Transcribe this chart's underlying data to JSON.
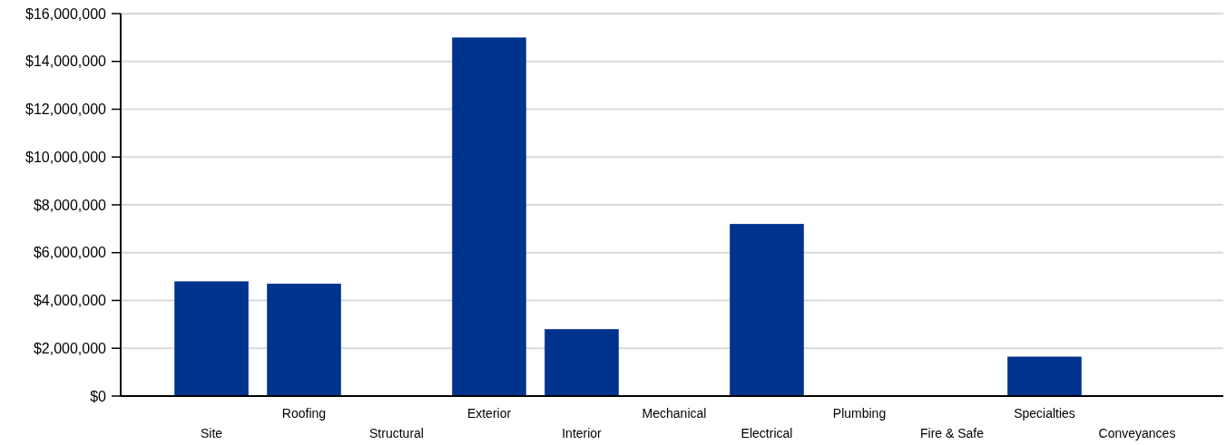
{
  "chart_data": {
    "type": "bar",
    "categories": [
      "Site",
      "Roofing",
      "Structural",
      "Exterior",
      "Interior",
      "Mechanical",
      "Electrical",
      "Plumbing",
      "Fire & Safe",
      "Specialties",
      "Conveyances"
    ],
    "values": [
      4800000,
      4700000,
      0,
      15000000,
      2800000,
      0,
      7200000,
      0,
      0,
      1650000,
      0
    ],
    "color": "#00338d",
    "ylim": [
      0,
      16000000
    ],
    "yticks": [
      {
        "value": 0,
        "label": "$0"
      },
      {
        "value": 2000000,
        "label": "$2,000,000"
      },
      {
        "value": 4000000,
        "label": "$4,000,000"
      },
      {
        "value": 6000000,
        "label": "$6,000,000"
      },
      {
        "value": 8000000,
        "label": "$8,000,000"
      },
      {
        "value": 10000000,
        "label": "$10,000,000"
      },
      {
        "value": 12000000,
        "label": "$12,000,000"
      },
      {
        "value": 14000000,
        "label": "$14,000,000"
      },
      {
        "value": 16000000,
        "label": "$16,000,000"
      }
    ],
    "grid": "y"
  }
}
